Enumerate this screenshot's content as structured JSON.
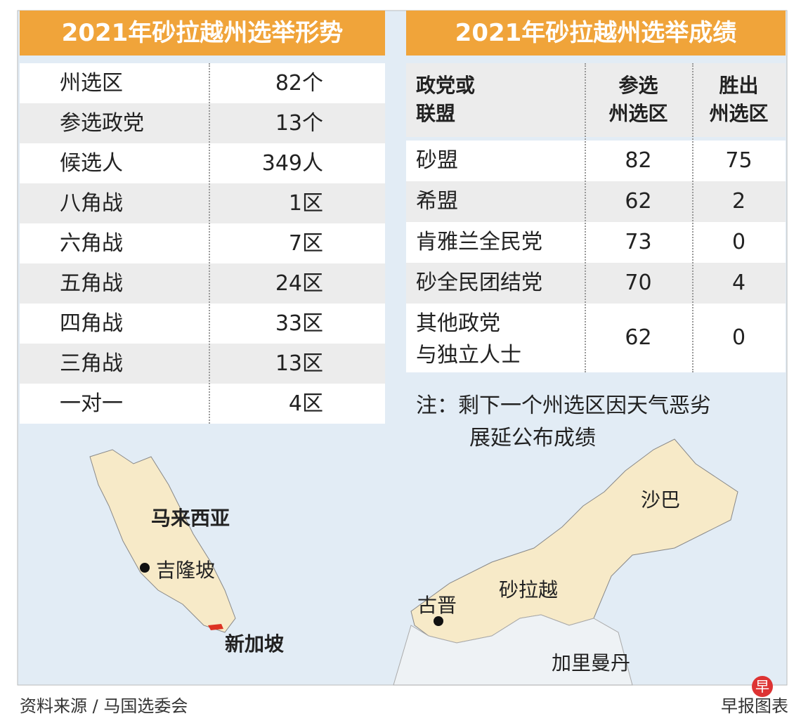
{
  "left_panel": {
    "title": "2021年砂拉越州选举形势",
    "rows": [
      [
        "州选区",
        "82个"
      ],
      [
        "参选政党",
        "13个"
      ],
      [
        "候选人",
        "349人"
      ],
      [
        "八角战",
        "1区"
      ],
      [
        "六角战",
        "7区"
      ],
      [
        "五角战",
        "24区"
      ],
      [
        "四角战",
        "33区"
      ],
      [
        "三角战",
        "13区"
      ],
      [
        "一对一",
        "4区"
      ]
    ]
  },
  "right_panel": {
    "title": "2021年砂拉越州选举成绩",
    "header": [
      [
        "政党或",
        "联盟"
      ],
      [
        "参选",
        "州选区"
      ],
      [
        "胜出",
        "州选区"
      ]
    ],
    "rows": [
      [
        [
          "砂盟"
        ],
        "82",
        "75"
      ],
      [
        [
          "希盟"
        ],
        "62",
        "2"
      ],
      [
        [
          "肯雅兰全民党"
        ],
        "73",
        "0"
      ],
      [
        [
          "砂全民团结党"
        ],
        "70",
        "4"
      ],
      [
        [
          "其他政党",
          "与独立人士"
        ],
        "62",
        "0"
      ]
    ],
    "note": [
      "注：剩下一个州选区因天气恶劣",
      "展延公布成绩"
    ]
  },
  "map": {
    "labels": [
      "马来西亚",
      "吉隆坡",
      "新加坡",
      "沙巴",
      "砂拉越",
      "古晋",
      "加里曼丹"
    ]
  },
  "footer": {
    "source": "资料来源 / 马国选委会",
    "credit": "早报图表",
    "logo": "早"
  }
}
